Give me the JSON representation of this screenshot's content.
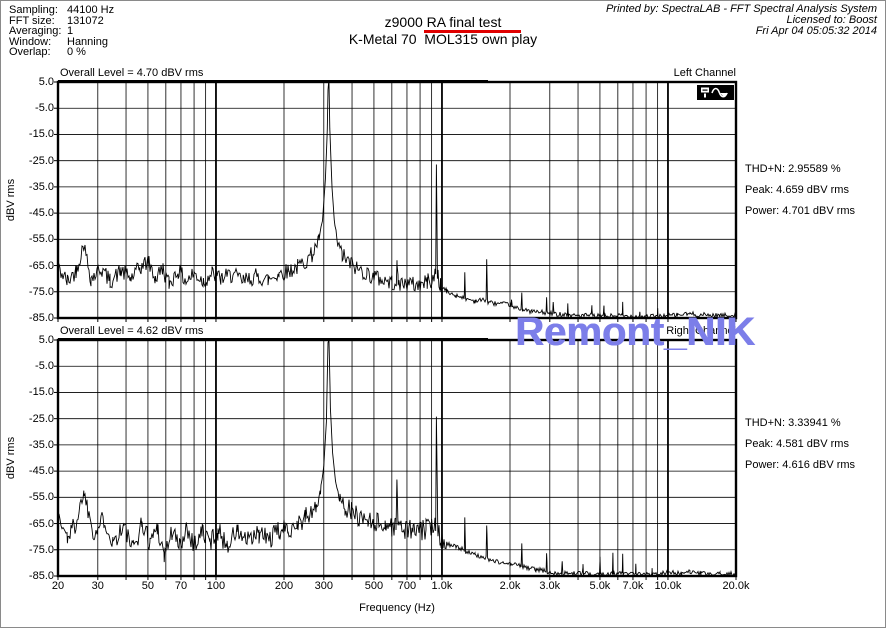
{
  "settings": {
    "rows": [
      {
        "label": "Sampling:",
        "value": "44100 Hz"
      },
      {
        "label": "FFT size:",
        "value": "131072"
      },
      {
        "label": "Averaging:",
        "value": "1"
      },
      {
        "label": "Window:",
        "value": "Hanning"
      },
      {
        "label": "Overlap:",
        "value": "0 %"
      }
    ]
  },
  "header": {
    "title": "z9000 RA final test",
    "subtitle": "K-Metal 70  MOL315 own play",
    "underline_color": "#e00000",
    "printed_by": "Printed by: SpectraLAB - FFT Spectral Analysis System",
    "licensed_to": "Licensed to: Boost",
    "date": "Fri Apr 04 05:05:32 2014"
  },
  "watermark": {
    "text": "Remont_NIK",
    "color": "#7c7ee9"
  },
  "x_axis": {
    "label": "Frequency (Hz)",
    "fmin": 20,
    "fmax": 20000,
    "ticks": [
      {
        "f": 20,
        "label": "20"
      },
      {
        "f": 30,
        "label": "30"
      },
      {
        "f": 50,
        "label": "50"
      },
      {
        "f": 70,
        "label": "70"
      },
      {
        "f": 100,
        "label": "100"
      },
      {
        "f": 200,
        "label": "200"
      },
      {
        "f": 300,
        "label": "300"
      },
      {
        "f": 500,
        "label": "500"
      },
      {
        "f": 700,
        "label": "700"
      },
      {
        "f": 1000,
        "label": "1.0k"
      },
      {
        "f": 2000,
        "label": "2.0k"
      },
      {
        "f": 3000,
        "label": "3.0k"
      },
      {
        "f": 5000,
        "label": "5.0k"
      },
      {
        "f": 7000,
        "label": "7.0k"
      },
      {
        "f": 10000,
        "label": "10.0k"
      },
      {
        "f": 20000,
        "label": "20.0k"
      }
    ],
    "grid_freqs": [
      20,
      30,
      40,
      50,
      60,
      70,
      80,
      90,
      100,
      200,
      300,
      400,
      500,
      600,
      700,
      800,
      900,
      1000,
      2000,
      3000,
      4000,
      5000,
      6000,
      7000,
      8000,
      9000,
      10000,
      20000
    ]
  },
  "chart_data": [
    {
      "type": "line",
      "overall_level": "Overall Level = 4.70 dBV rms",
      "channel": "Left Channel",
      "thd": "THD+N: 2.95589 %",
      "peak": "Peak: 4.659 dBV rms",
      "power": "Power: 4.701 dBV rms",
      "ylabel": "dBV rms",
      "xlabel": "Frequency (Hz)",
      "xscale": "log",
      "ylim": [
        -85,
        5
      ],
      "y_ticks": [
        "5.0",
        "-5.0",
        "-15.0",
        "-25.0",
        "-35.0",
        "-45.0",
        "-55.0",
        "-65.0",
        "-75.0",
        "-85.0"
      ],
      "fundamental_hz": 315,
      "anchors_db": [
        [
          20,
          -66
        ],
        [
          22,
          -71
        ],
        [
          24,
          -67
        ],
        [
          26,
          -57
        ],
        [
          28,
          -70
        ],
        [
          31,
          -66
        ],
        [
          34,
          -71
        ],
        [
          38,
          -67
        ],
        [
          42,
          -70
        ],
        [
          46,
          -66
        ],
        [
          50,
          -63.5
        ],
        [
          54,
          -70
        ],
        [
          58,
          -66
        ],
        [
          62,
          -72
        ],
        [
          68,
          -67
        ],
        [
          74,
          -71
        ],
        [
          80,
          -68
        ],
        [
          88,
          -71
        ],
        [
          96,
          -68
        ],
        [
          105,
          -70
        ],
        [
          118,
          -68.5
        ],
        [
          132,
          -71
        ],
        [
          150,
          -69
        ],
        [
          170,
          -70.5
        ],
        [
          190,
          -68
        ],
        [
          210,
          -67
        ],
        [
          230,
          -65.5
        ],
        [
          252,
          -63
        ],
        [
          270,
          -60
        ],
        [
          285,
          -55
        ],
        [
          296,
          -48
        ],
        [
          305,
          -32
        ],
        [
          311,
          -13
        ],
        [
          315,
          15
        ],
        [
          319,
          -13
        ],
        [
          326,
          -35
        ],
        [
          334,
          -48
        ],
        [
          346,
          -57
        ],
        [
          362,
          -61
        ],
        [
          385,
          -63.5
        ],
        [
          420,
          -66
        ],
        [
          465,
          -68
        ],
        [
          525,
          -70
        ],
        [
          600,
          -71.5
        ],
        [
          628,
          -71
        ],
        [
          633,
          -65.5
        ],
        [
          640,
          -71.5
        ],
        [
          700,
          -72
        ],
        [
          800,
          -72.5
        ],
        [
          860,
          -71
        ],
        [
          910,
          -70.5
        ],
        [
          938,
          -68
        ],
        [
          945,
          -26.5
        ],
        [
          955,
          -68
        ],
        [
          985,
          -73
        ],
        [
          1050,
          -75
        ],
        [
          1150,
          -76.5
        ],
        [
          1255,
          -77
        ],
        [
          1262,
          -68
        ],
        [
          1270,
          -77.5
        ],
        [
          1400,
          -78.5
        ],
        [
          1568,
          -78
        ],
        [
          1578,
          -62.5
        ],
        [
          1590,
          -79
        ],
        [
          1750,
          -79.5
        ],
        [
          2020,
          -80
        ],
        [
          2030,
          -78
        ],
        [
          2045,
          -81
        ],
        [
          2240,
          -81.5
        ],
        [
          2255,
          -74.5
        ],
        [
          2270,
          -82
        ],
        [
          2500,
          -82.5
        ],
        [
          2890,
          -83
        ],
        [
          2905,
          -77
        ],
        [
          2920,
          -83
        ],
        [
          3090,
          -83.5
        ],
        [
          3105,
          -79
        ],
        [
          3130,
          -83.5
        ],
        [
          3590,
          -83.5
        ],
        [
          3605,
          -80
        ],
        [
          3625,
          -84
        ],
        [
          4580,
          -84
        ],
        [
          4605,
          -80.5
        ],
        [
          4630,
          -84.3
        ],
        [
          5180,
          -84.2
        ],
        [
          5205,
          -80
        ],
        [
          5230,
          -84.3
        ],
        [
          6280,
          -84
        ],
        [
          6305,
          -79.5
        ],
        [
          6330,
          -84.3
        ],
        [
          7480,
          -84.3
        ],
        [
          7505,
          -82
        ],
        [
          7530,
          -84.4
        ],
        [
          8980,
          -84.3
        ],
        [
          9005,
          -82
        ],
        [
          9030,
          -84.4
        ],
        [
          11000,
          -83.8
        ],
        [
          12500,
          -83.4
        ],
        [
          14000,
          -83.8
        ],
        [
          17000,
          -84
        ],
        [
          20000,
          -84
        ]
      ],
      "noise": {
        "seed": 42,
        "amp_low": 3.2,
        "amp_high": 0.9,
        "split": 1050
      }
    },
    {
      "type": "line",
      "overall_level": "Overall Level = 4.62 dBV rms",
      "channel": "Right Channel",
      "thd": "THD+N: 3.33941 %",
      "peak": "Peak: 4.581 dBV rms",
      "power": "Power: 4.616 dBV rms",
      "ylabel": "dBV rms",
      "xlabel": "Frequency (Hz)",
      "xscale": "log",
      "ylim": [
        -85,
        5
      ],
      "y_ticks": [
        "5.0",
        "-5.0",
        "-15.0",
        "-25.0",
        "-35.0",
        "-45.0",
        "-55.0",
        "-65.0",
        "-75.0",
        "-85.0"
      ],
      "fundamental_hz": 315,
      "anchors_db": [
        [
          20,
          -63
        ],
        [
          22,
          -70
        ],
        [
          24,
          -65
        ],
        [
          26,
          -53
        ],
        [
          29,
          -69
        ],
        [
          32,
          -63
        ],
        [
          35,
          -72
        ],
        [
          39,
          -66
        ],
        [
          43,
          -75
        ],
        [
          47,
          -65
        ],
        [
          51,
          -72
        ],
        [
          55,
          -66
        ],
        [
          59,
          -77
        ],
        [
          64,
          -68
        ],
        [
          69,
          -74
        ],
        [
          74,
          -66
        ],
        [
          80,
          -73
        ],
        [
          87,
          -68
        ],
        [
          94,
          -72
        ],
        [
          102,
          -68
        ],
        [
          112,
          -73
        ],
        [
          124,
          -68
        ],
        [
          138,
          -72
        ],
        [
          155,
          -69
        ],
        [
          172,
          -71
        ],
        [
          190,
          -68
        ],
        [
          208,
          -67
        ],
        [
          228,
          -65
        ],
        [
          248,
          -63
        ],
        [
          265,
          -61
        ],
        [
          278,
          -58.5
        ],
        [
          290,
          -53
        ],
        [
          300,
          -43
        ],
        [
          308,
          -26
        ],
        [
          315,
          15
        ],
        [
          321,
          -21
        ],
        [
          328,
          -38
        ],
        [
          338,
          -49
        ],
        [
          352,
          -55
        ],
        [
          372,
          -58.5
        ],
        [
          398,
          -60.5
        ],
        [
          430,
          -62.5
        ],
        [
          470,
          -63.5
        ],
        [
          515,
          -64.5
        ],
        [
          560,
          -65.5
        ],
        [
          600,
          -66
        ],
        [
          626,
          -66.5
        ],
        [
          632,
          -48
        ],
        [
          640,
          -66.5
        ],
        [
          690,
          -67
        ],
        [
          745,
          -67.5
        ],
        [
          800,
          -68
        ],
        [
          850,
          -67
        ],
        [
          900,
          -66.5
        ],
        [
          938,
          -64
        ],
        [
          945,
          -24
        ],
        [
          958,
          -67
        ],
        [
          990,
          -70.5
        ],
        [
          1050,
          -72.5
        ],
        [
          1150,
          -74
        ],
        [
          1255,
          -75
        ],
        [
          1262,
          -63
        ],
        [
          1272,
          -75.5
        ],
        [
          1400,
          -77
        ],
        [
          1568,
          -78
        ],
        [
          1578,
          -65
        ],
        [
          1592,
          -78.5
        ],
        [
          1750,
          -79.5
        ],
        [
          2000,
          -80.5
        ],
        [
          2240,
          -81
        ],
        [
          2255,
          -72
        ],
        [
          2270,
          -81.5
        ],
        [
          2600,
          -82.5
        ],
        [
          2890,
          -83
        ],
        [
          2905,
          -77
        ],
        [
          2925,
          -83.5
        ],
        [
          3380,
          -83.8
        ],
        [
          3405,
          -80
        ],
        [
          3430,
          -84
        ],
        [
          4180,
          -84
        ],
        [
          4205,
          -81
        ],
        [
          4230,
          -84.2
        ],
        [
          4980,
          -84
        ],
        [
          5005,
          -78
        ],
        [
          5030,
          -84.2
        ],
        [
          5680,
          -84
        ],
        [
          5705,
          -76
        ],
        [
          5730,
          -84.2
        ],
        [
          6280,
          -84
        ],
        [
          6305,
          -77
        ],
        [
          6330,
          -84.3
        ],
        [
          7180,
          -84.3
        ],
        [
          7205,
          -80
        ],
        [
          7230,
          -84.4
        ],
        [
          8480,
          -84.3
        ],
        [
          8505,
          -82
        ],
        [
          8530,
          -84.4
        ],
        [
          10000,
          -83.5
        ],
        [
          11500,
          -84.2
        ],
        [
          12500,
          -83.5
        ],
        [
          14000,
          -84.2
        ],
        [
          17000,
          -84.3
        ],
        [
          20000,
          -84.2
        ]
      ],
      "noise": {
        "seed": 1337,
        "amp_low": 4.0,
        "amp_high": 0.9,
        "split": 1050
      }
    }
  ],
  "icon": {
    "name": "channel-display-icon"
  }
}
